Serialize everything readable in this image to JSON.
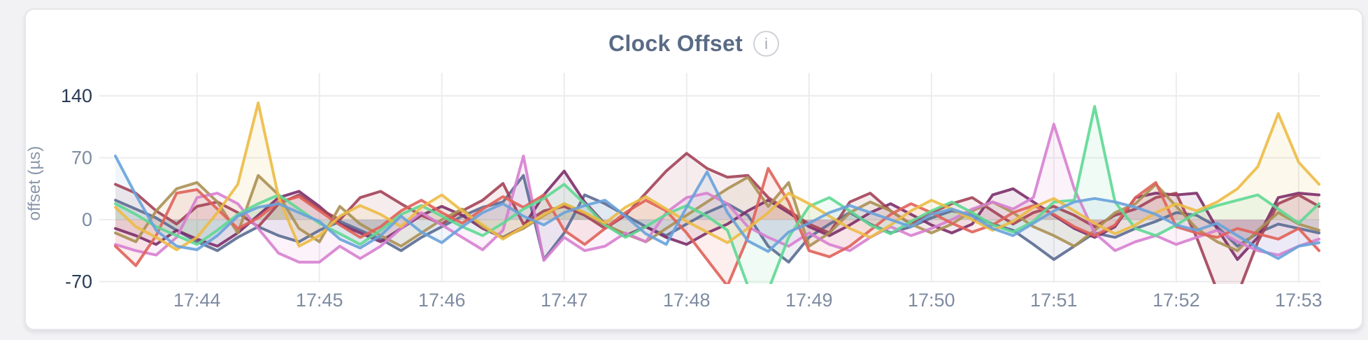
{
  "page": {
    "background_color": "#f2f2f4",
    "card_background": "#ffffff",
    "card_border_color": "#e7e7ea",
    "grid_color": "#ececef",
    "tick_color_strong": "#283a55",
    "tick_color_muted": "#7e8ba1",
    "title_color": "#5a6b85",
    "y_axis_title_color": "#8a96a9"
  },
  "header": {
    "info_glyph": "i"
  },
  "chart_data": {
    "type": "line",
    "title": "Clock Offset",
    "xlabel": "",
    "ylabel": "offset (µs)",
    "ylim": [
      -70,
      165
    ],
    "grid": true,
    "legend": "none",
    "area_fill_opacity": 0.1,
    "yticks": [
      {
        "label": "140",
        "value": 140,
        "strong": true
      },
      {
        "label": "70",
        "value": 70,
        "strong": false
      },
      {
        "label": "0",
        "value": 0,
        "strong": false
      },
      {
        "label": "-70",
        "value": -70,
        "strong": true
      }
    ],
    "x_window": {
      "start": "17:43:20",
      "end": "17:53:10",
      "step_seconds": 10,
      "points": 60
    },
    "x_ticks": [
      {
        "label": "17:44",
        "index": 4
      },
      {
        "label": "17:45",
        "index": 10
      },
      {
        "label": "17:46",
        "index": 16
      },
      {
        "label": "17:47",
        "index": 22
      },
      {
        "label": "17:48",
        "index": 28
      },
      {
        "label": "17:49",
        "index": 34
      },
      {
        "label": "17:50",
        "index": 40
      },
      {
        "label": "17:51",
        "index": 46
      },
      {
        "label": "17:52",
        "index": 52
      },
      {
        "label": "17:53",
        "index": 58
      }
    ],
    "series": [
      {
        "name": "series-1",
        "color": "#5b6c92",
        "values": [
          22,
          12,
          2,
          -12,
          -25,
          -35,
          -20,
          -8,
          -18,
          -25,
          -12,
          -2,
          -12,
          -22,
          -35,
          -20,
          -8,
          4,
          14,
          20,
          50,
          -45,
          -15,
          28,
          18,
          5,
          -8,
          -18,
          -5,
          8,
          18,
          5,
          -30,
          -48,
          -20,
          -5,
          8,
          -5,
          -15,
          -8,
          2,
          10,
          5,
          -5,
          -12,
          -28,
          -45,
          -30,
          -15,
          -20,
          -10,
          -2,
          8,
          5,
          -8,
          -30,
          -15,
          -5,
          -10,
          -15
        ]
      },
      {
        "name": "series-2",
        "color": "#7c2d69",
        "values": [
          -10,
          -18,
          -28,
          -12,
          -22,
          -30,
          -15,
          5,
          25,
          32,
          15,
          -5,
          -15,
          -25,
          -10,
          5,
          15,
          5,
          -10,
          -20,
          -8,
          28,
          55,
          20,
          -5,
          -18,
          -8,
          -20,
          -28,
          -15,
          -5,
          10,
          22,
          8,
          -8,
          -18,
          -6,
          8,
          18,
          6,
          -6,
          -15,
          -5,
          28,
          35,
          20,
          5,
          -10,
          -20,
          -8,
          25,
          30,
          28,
          30,
          -10,
          -45,
          -20,
          25,
          30,
          28
        ]
      },
      {
        "name": "series-3",
        "color": "#a34258",
        "values": [
          40,
          30,
          10,
          -5,
          15,
          20,
          8,
          -8,
          18,
          28,
          12,
          0,
          25,
          32,
          18,
          5,
          -5,
          10,
          22,
          41,
          -5,
          10,
          15,
          5,
          -10,
          5,
          30,
          55,
          75,
          58,
          48,
          50,
          25,
          10,
          -5,
          -15,
          20,
          30,
          10,
          -5,
          8,
          18,
          25,
          10,
          -5,
          8,
          15,
          5,
          -8,
          5,
          12,
          25,
          30,
          -20,
          -80,
          -85,
          -25,
          18,
          28,
          15
        ]
      },
      {
        "name": "series-4",
        "color": "#ab9053",
        "values": [
          -15,
          -25,
          10,
          35,
          42,
          20,
          -15,
          50,
          28,
          -10,
          -25,
          15,
          -5,
          -18,
          -30,
          -15,
          0,
          12,
          -8,
          -20,
          -10,
          5,
          18,
          8,
          -6,
          -16,
          -25,
          -10,
          5,
          20,
          35,
          48,
          15,
          42,
          -30,
          -15,
          8,
          20,
          10,
          -5,
          -15,
          -5,
          10,
          20,
          8,
          -8,
          -18,
          -30,
          -12,
          8,
          18,
          40,
          15,
          -10,
          -25,
          -35,
          -12,
          8,
          -5,
          -12
        ]
      },
      {
        "name": "series-5",
        "color": "#d77fd0",
        "values": [
          -28,
          -35,
          -40,
          -20,
          25,
          30,
          18,
          -10,
          -38,
          -48,
          -48,
          -30,
          -44,
          -30,
          -10,
          8,
          -6,
          -20,
          -34,
          -12,
          72,
          -46,
          -20,
          -35,
          -30,
          -15,
          -25,
          8,
          25,
          30,
          18,
          -8,
          -20,
          -30,
          -15,
          -28,
          -35,
          -20,
          -8,
          -18,
          -10,
          0,
          12,
          20,
          12,
          25,
          108,
          35,
          -15,
          -35,
          -25,
          -18,
          -28,
          -20,
          -12,
          -25,
          -35,
          -40,
          -30,
          -22
        ]
      },
      {
        "name": "series-6",
        "color": "#e06259",
        "values": [
          -30,
          -52,
          -18,
          30,
          34,
          12,
          -10,
          2,
          20,
          26,
          10,
          -6,
          -20,
          -8,
          10,
          22,
          8,
          -4,
          12,
          26,
          14,
          28,
          -12,
          -28,
          -10,
          8,
          22,
          10,
          -15,
          -45,
          -75,
          -20,
          58,
          20,
          -35,
          -42,
          -30,
          -12,
          6,
          18,
          8,
          -4,
          -14,
          -6,
          8,
          16,
          6,
          -8,
          -18,
          -6,
          25,
          42,
          -8,
          -15,
          -20,
          -10,
          -16,
          -22,
          -10,
          -35
        ]
      },
      {
        "name": "series-7",
        "color": "#5ed893",
        "values": [
          18,
          6,
          -8,
          -18,
          -28,
          -12,
          6,
          18,
          28,
          12,
          -4,
          -16,
          -28,
          -12,
          6,
          16,
          4,
          -8,
          -18,
          -4,
          12,
          24,
          40,
          18,
          -6,
          -20,
          -8,
          6,
          16,
          4,
          -12,
          -75,
          -80,
          -20,
          15,
          25,
          10,
          -6,
          -16,
          -2,
          10,
          20,
          8,
          -6,
          -14,
          -2,
          20,
          22,
          128,
          20,
          -10,
          -18,
          -6,
          8,
          16,
          22,
          28,
          12,
          -4,
          18
        ]
      },
      {
        "name": "series-8",
        "color": "#ecbb45",
        "values": [
          14,
          -8,
          -20,
          -34,
          -20,
          8,
          40,
          132,
          25,
          -30,
          -18,
          4,
          16,
          6,
          -8,
          14,
          28,
          10,
          -6,
          -22,
          -8,
          6,
          18,
          8,
          -4,
          14,
          26,
          12,
          -2,
          -14,
          -26,
          -10,
          8,
          30,
          18,
          4,
          -10,
          -20,
          -6,
          10,
          22,
          12,
          0,
          -12,
          -2,
          14,
          24,
          10,
          -4,
          -16,
          -6,
          8,
          18,
          10,
          20,
          35,
          60,
          120,
          65,
          40
        ]
      },
      {
        "name": "series-9",
        "color": "#68a2da",
        "values": [
          72,
          28,
          -12,
          -30,
          -34,
          -18,
          4,
          14,
          18,
          8,
          -2,
          -22,
          -32,
          -18,
          4,
          -14,
          -26,
          -8,
          8,
          18,
          4,
          -6,
          8,
          16,
          22,
          4,
          -16,
          -28,
          14,
          54,
          8,
          -24,
          -36,
          -14,
          -4,
          8,
          16,
          8,
          0,
          -8,
          6,
          12,
          4,
          -10,
          -18,
          -4,
          10,
          20,
          24,
          20,
          14,
          6,
          -6,
          -12,
          -4,
          -18,
          -32,
          -44,
          -30,
          -26
        ]
      }
    ]
  }
}
